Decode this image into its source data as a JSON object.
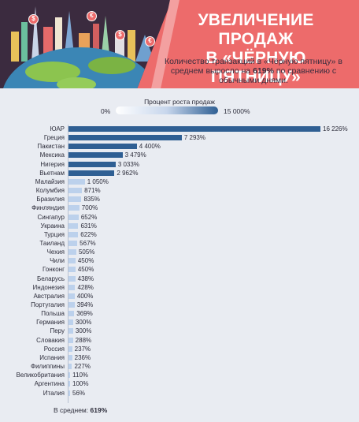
{
  "header": {
    "title_line1": "УВЕЛИЧЕНИЕ ПРОДАЖ",
    "title_line2": "В «ЧЁРНУЮ ПЯТНИЦУ»",
    "subtitle_before": "Количество транзакций в «Чёрную пятницу» в среднем выросло на ",
    "subtitle_highlight": "619%",
    "subtitle_after": " по сравнению с обычными днями.",
    "coin_symbol": "$",
    "euro_symbol": "€"
  },
  "legend": {
    "title": "Процент роста продаж",
    "min_label": "0%",
    "max_label": "15 000%"
  },
  "average": {
    "label": "В среднем:",
    "value": "619%"
  },
  "colors": {
    "dark_bar": "#2f5f93",
    "light_bar": "#bcd1ec",
    "header_red": "#ed6b6b",
    "header_dark": "#3b2b3f"
  },
  "chart_data": {
    "type": "bar",
    "orientation": "horizontal",
    "categories": [
      "ЮАР",
      "Греция",
      "Пакистан",
      "Мексика",
      "Нигерия",
      "Вьетнам",
      "Малайзия",
      "Колумбия",
      "Бразилия",
      "Финляндия",
      "Сингапур",
      "Украина",
      "Турция",
      "Таиланд",
      "Чехия",
      "Чили",
      "Гонконг",
      "Беларусь",
      "Индонезия",
      "Австралия",
      "Португалия",
      "Польша",
      "Германия",
      "Перу",
      "Словакия",
      "Россия",
      "Испания",
      "Филиппины",
      "Великобритания",
      "Аргентина",
      "Италия"
    ],
    "values": [
      16226,
      7293,
      4400,
      3479,
      3033,
      2962,
      1050,
      871,
      835,
      700,
      652,
      631,
      622,
      567,
      505,
      450,
      450,
      438,
      428,
      400,
      394,
      369,
      300,
      300,
      288,
      237,
      236,
      227,
      110,
      100,
      56
    ],
    "value_labels": [
      "16 226%",
      "7 293%",
      "4 400%",
      "3 479%",
      "3 033%",
      "2 962%",
      "1 050%",
      "871%",
      "835%",
      "700%",
      "652%",
      "631%",
      "622%",
      "567%",
      "505%",
      "450%",
      "450%",
      "438%",
      "428%",
      "400%",
      "394%",
      "369%",
      "300%",
      "300%",
      "288%",
      "237%",
      "236%",
      "227%",
      "110%",
      "100%",
      "56%"
    ],
    "xlim": [
      0,
      16226
    ],
    "legend_range": [
      0,
      15000
    ],
    "grid": false
  }
}
